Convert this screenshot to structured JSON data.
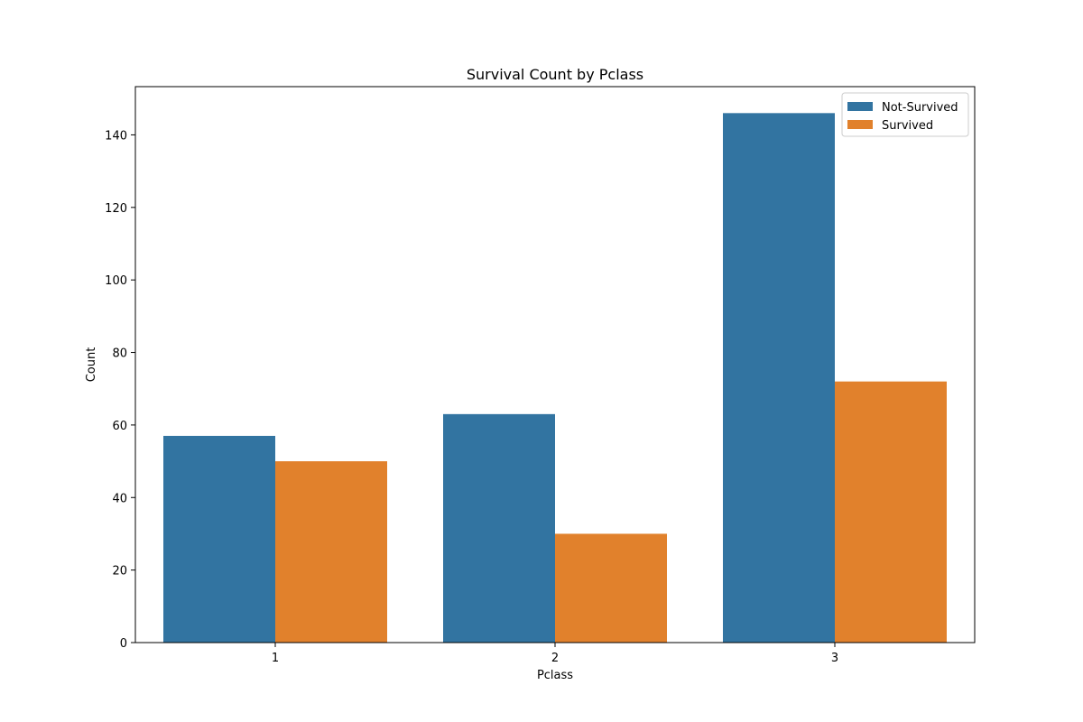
{
  "chart_data": {
    "type": "bar",
    "title": "Survival Count by Pclass",
    "xlabel": "Pclass",
    "ylabel": "Count",
    "categories": [
      "1",
      "2",
      "3"
    ],
    "series": [
      {
        "name": "Not-Survived",
        "values": [
          57,
          63,
          146
        ],
        "color": "#3274a1"
      },
      {
        "name": "Survived",
        "values": [
          50,
          30,
          72
        ],
        "color": "#e1812c"
      }
    ],
    "ylim": [
      0,
      153.3
    ],
    "yticks": [
      0,
      20,
      40,
      60,
      80,
      100,
      120,
      140
    ],
    "grid": false,
    "legend_position": "top-right"
  }
}
